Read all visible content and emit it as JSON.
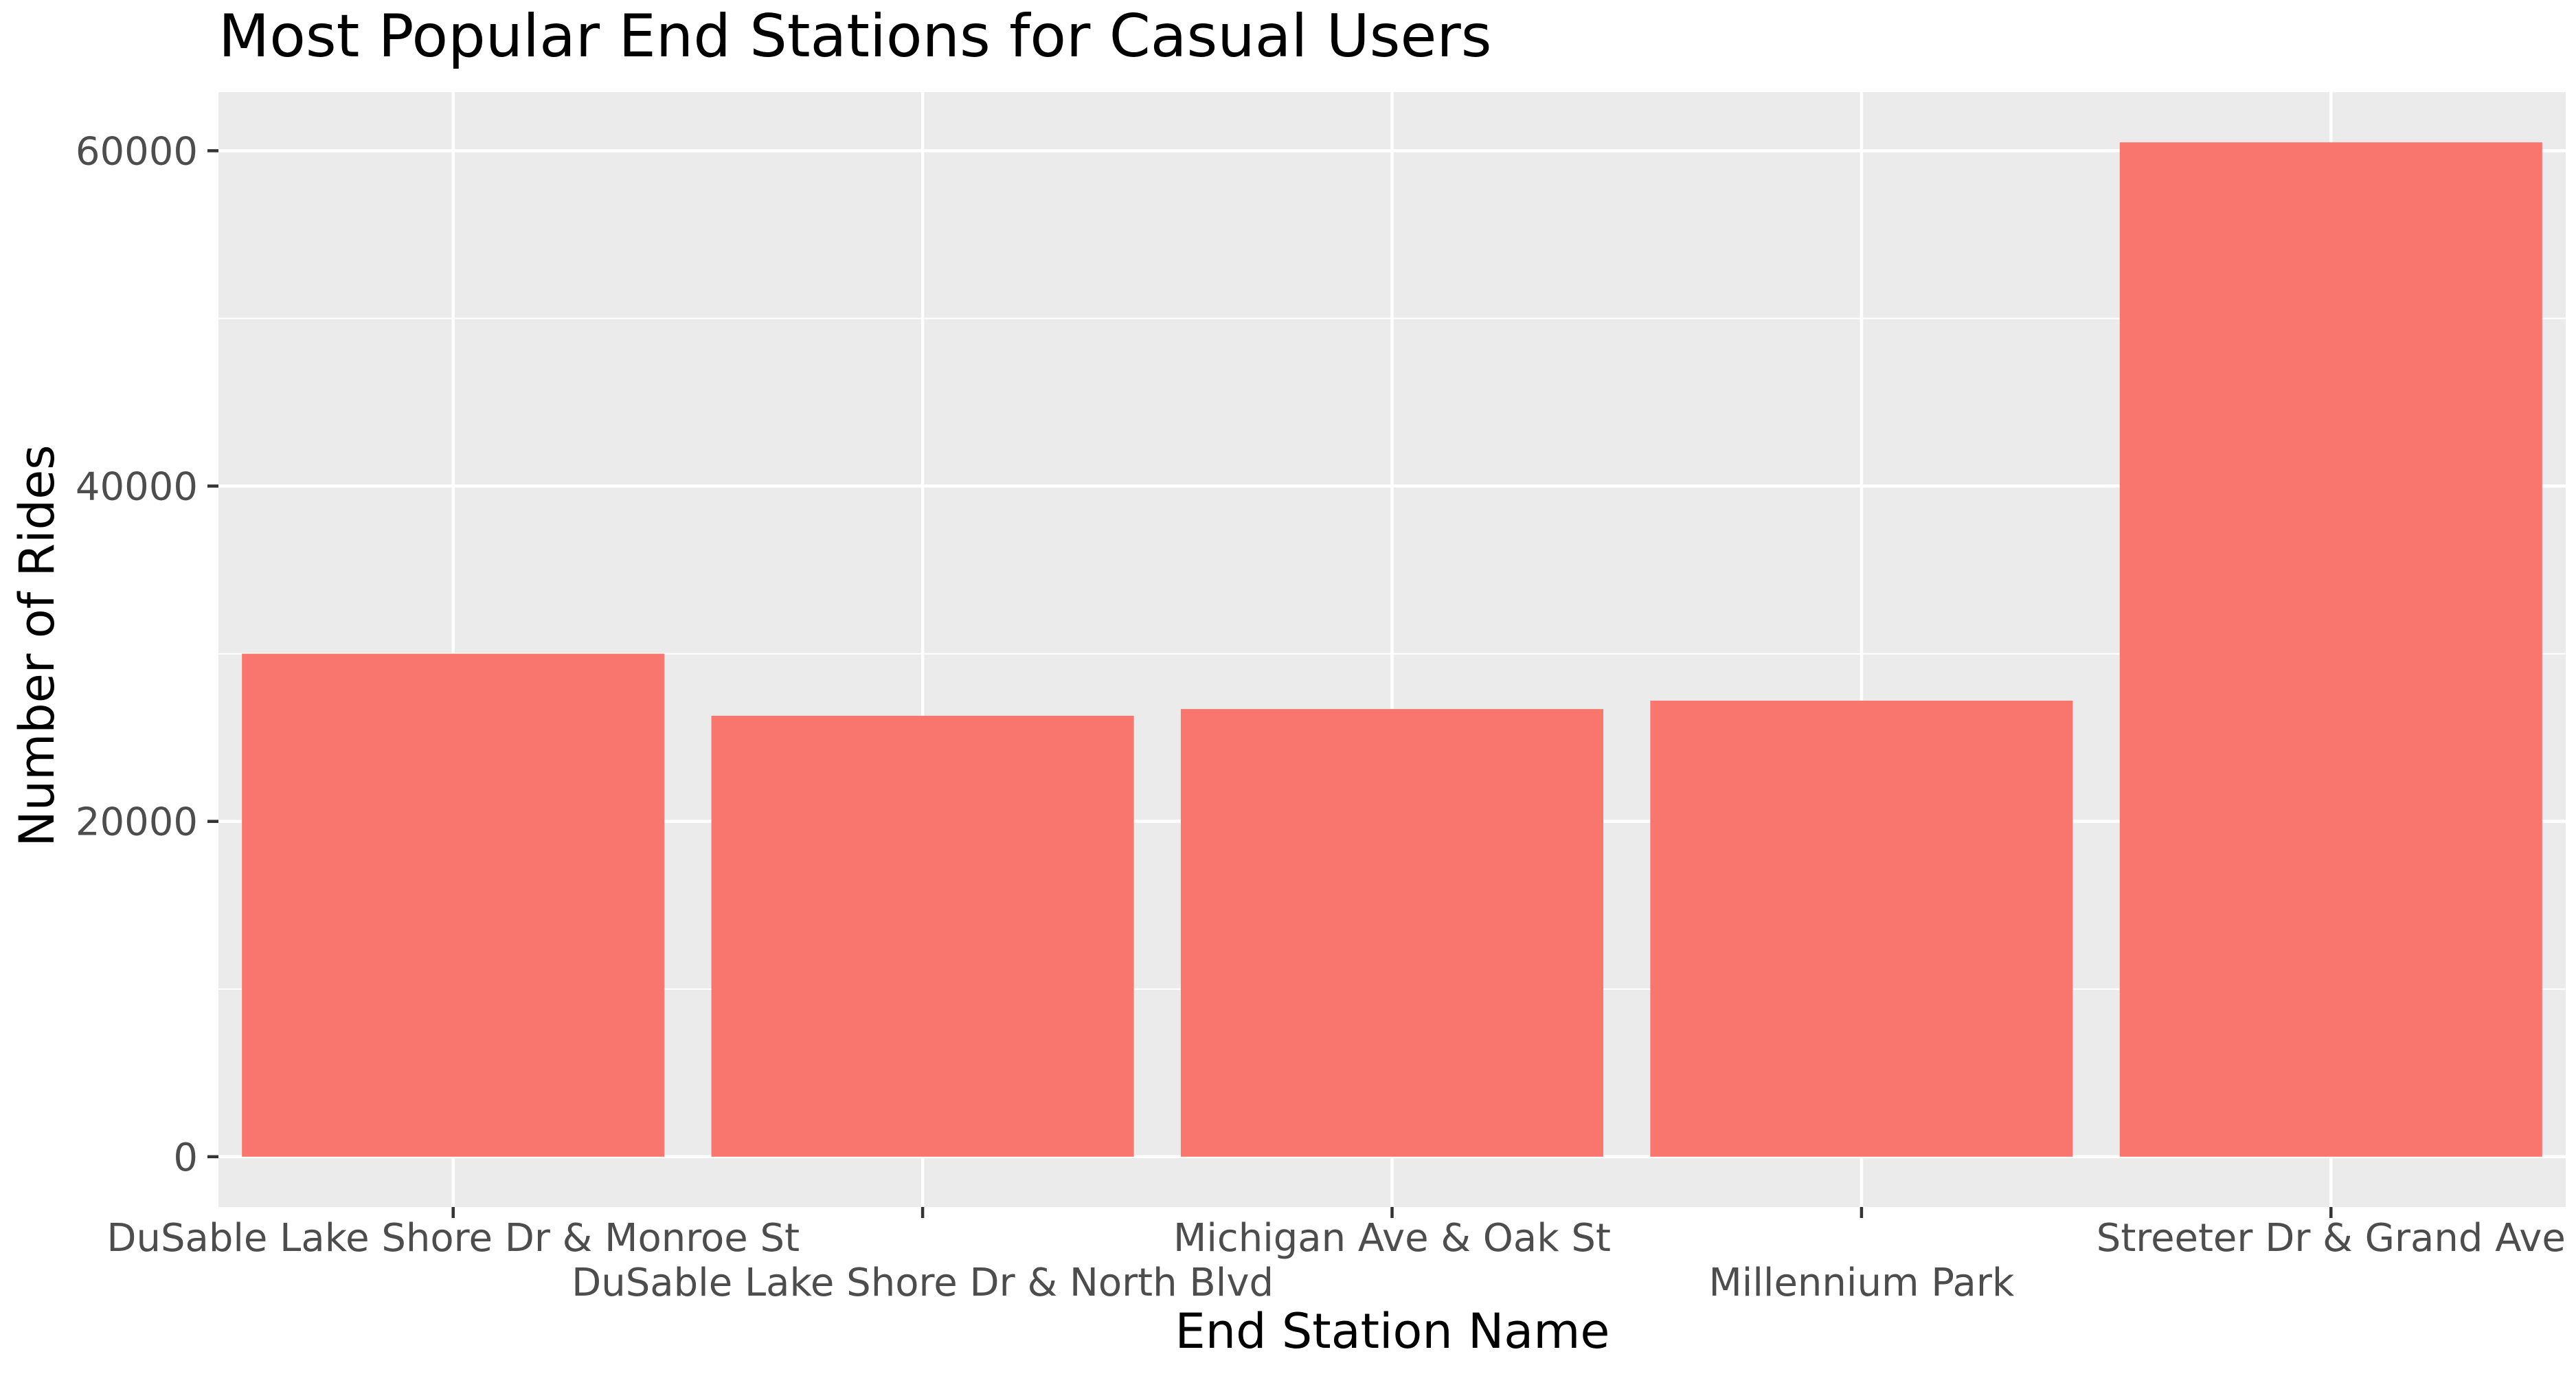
{
  "chart_data": {
    "type": "bar",
    "title": "Most Popular End Stations for Casual Users",
    "xlabel": "End Station Name",
    "ylabel": "Number of Rides",
    "categories": [
      "DuSable Lake Shore Dr & Monroe St",
      "DuSable Lake Shore Dr & North Blvd",
      "Michigan Ave & Oak St",
      "Millennium Park",
      "Streeter Dr & Grand Ave"
    ],
    "values": [
      30000,
      26300,
      26700,
      27200,
      60500
    ],
    "yticks": [
      0,
      20000,
      40000,
      60000
    ],
    "ytick_labels": [
      "0",
      "20000",
      "40000",
      "60000"
    ],
    "ylim": [
      -3000,
      63500
    ],
    "grid": true,
    "legend": "none",
    "bar_color": "#F8766D",
    "panel_background": "#EBEBEB",
    "gridline_color": "#FFFFFF"
  }
}
